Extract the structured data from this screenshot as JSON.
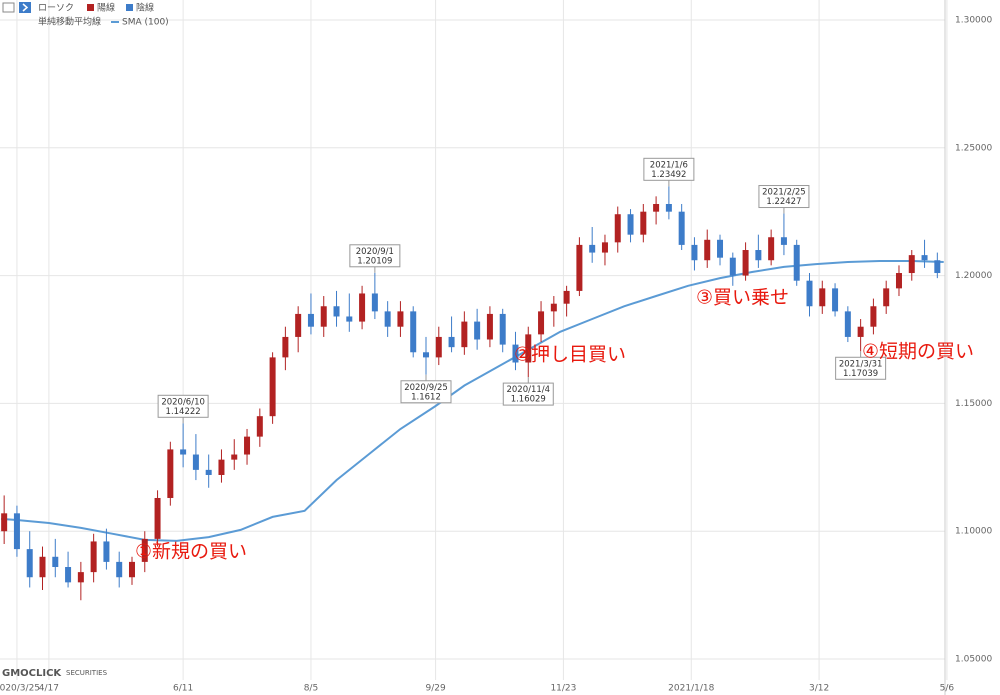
{
  "chart_data": {
    "type": "candlestick",
    "legend": {
      "title": "ローソク",
      "up": "陽線",
      "down": "陰線",
      "ma_title": "単純移動平均線",
      "ma": "SMA (100)"
    },
    "up_color": "#b22222",
    "down_color": "#3d7cc9",
    "x": [
      -4,
      0,
      4,
      8,
      12,
      16,
      20,
      24,
      28,
      32,
      36,
      40,
      44,
      48,
      52,
      56,
      60,
      64,
      68,
      72,
      76,
      80,
      84,
      88,
      92,
      96,
      100,
      104,
      108,
      112,
      116,
      120,
      124,
      128,
      132,
      136,
      140,
      144,
      148,
      152,
      156,
      160,
      164,
      168,
      172,
      176,
      180,
      184,
      188,
      192,
      196,
      200,
      204,
      208,
      212,
      216,
      220,
      224,
      228,
      232,
      236,
      240,
      244,
      248,
      252,
      256,
      260,
      264,
      268,
      272,
      276,
      280,
      284,
      288
    ],
    "ohlc": [
      [
        1.1,
        1.114,
        1.095,
        1.107
      ],
      [
        1.107,
        1.11,
        1.09,
        1.093
      ],
      [
        1.093,
        1.1,
        1.078,
        1.082
      ],
      [
        1.082,
        1.094,
        1.077,
        1.09
      ],
      [
        1.09,
        1.097,
        1.082,
        1.086
      ],
      [
        1.086,
        1.092,
        1.078,
        1.08
      ],
      [
        1.08,
        1.088,
        1.073,
        1.084
      ],
      [
        1.084,
        1.099,
        1.08,
        1.096
      ],
      [
        1.096,
        1.101,
        1.085,
        1.088
      ],
      [
        1.088,
        1.092,
        1.078,
        1.082
      ],
      [
        1.082,
        1.09,
        1.079,
        1.088
      ],
      [
        1.088,
        1.1,
        1.084,
        1.097
      ],
      [
        1.097,
        1.116,
        1.094,
        1.113
      ],
      [
        1.113,
        1.135,
        1.11,
        1.132
      ],
      [
        1.132,
        1.14222,
        1.125,
        1.13
      ],
      [
        1.13,
        1.138,
        1.12,
        1.124
      ],
      [
        1.124,
        1.13,
        1.117,
        1.122
      ],
      [
        1.122,
        1.132,
        1.119,
        1.128
      ],
      [
        1.128,
        1.136,
        1.124,
        1.13
      ],
      [
        1.13,
        1.14,
        1.126,
        1.137
      ],
      [
        1.137,
        1.148,
        1.133,
        1.145
      ],
      [
        1.145,
        1.17,
        1.142,
        1.168
      ],
      [
        1.168,
        1.18,
        1.163,
        1.176
      ],
      [
        1.176,
        1.188,
        1.17,
        1.185
      ],
      [
        1.185,
        1.193,
        1.177,
        1.18
      ],
      [
        1.18,
        1.192,
        1.176,
        1.188
      ],
      [
        1.188,
        1.194,
        1.18,
        1.184
      ],
      [
        1.184,
        1.193,
        1.178,
        1.182
      ],
      [
        1.182,
        1.196,
        1.179,
        1.193
      ],
      [
        1.193,
        1.20109,
        1.183,
        1.186
      ],
      [
        1.186,
        1.19,
        1.176,
        1.18
      ],
      [
        1.18,
        1.19,
        1.176,
        1.186
      ],
      [
        1.186,
        1.188,
        1.168,
        1.17
      ],
      [
        1.17,
        1.176,
        1.1612,
        1.168
      ],
      [
        1.168,
        1.18,
        1.165,
        1.176
      ],
      [
        1.176,
        1.184,
        1.17,
        1.172
      ],
      [
        1.172,
        1.186,
        1.169,
        1.182
      ],
      [
        1.182,
        1.187,
        1.171,
        1.175
      ],
      [
        1.175,
        1.188,
        1.172,
        1.185
      ],
      [
        1.185,
        1.187,
        1.17,
        1.173
      ],
      [
        1.173,
        1.178,
        1.163,
        1.166
      ],
      [
        1.166,
        1.18,
        1.16029,
        1.177
      ],
      [
        1.177,
        1.19,
        1.174,
        1.186
      ],
      [
        1.186,
        1.192,
        1.18,
        1.189
      ],
      [
        1.189,
        1.196,
        1.184,
        1.194
      ],
      [
        1.194,
        1.215,
        1.192,
        1.212
      ],
      [
        1.212,
        1.219,
        1.205,
        1.209
      ],
      [
        1.209,
        1.216,
        1.204,
        1.213
      ],
      [
        1.213,
        1.227,
        1.209,
        1.224
      ],
      [
        1.224,
        1.226,
        1.213,
        1.216
      ],
      [
        1.216,
        1.228,
        1.213,
        1.225
      ],
      [
        1.225,
        1.231,
        1.22,
        1.228
      ],
      [
        1.228,
        1.23492,
        1.222,
        1.225
      ],
      [
        1.225,
        1.228,
        1.21,
        1.212
      ],
      [
        1.212,
        1.215,
        1.202,
        1.206
      ],
      [
        1.206,
        1.218,
        1.203,
        1.214
      ],
      [
        1.214,
        1.216,
        1.204,
        1.207
      ],
      [
        1.207,
        1.209,
        1.196,
        1.2
      ],
      [
        1.2,
        1.213,
        1.198,
        1.21
      ],
      [
        1.21,
        1.216,
        1.203,
        1.206
      ],
      [
        1.206,
        1.218,
        1.204,
        1.215
      ],
      [
        1.215,
        1.22427,
        1.208,
        1.212
      ],
      [
        1.212,
        1.214,
        1.196,
        1.198
      ],
      [
        1.198,
        1.201,
        1.184,
        1.188
      ],
      [
        1.188,
        1.198,
        1.185,
        1.195
      ],
      [
        1.195,
        1.197,
        1.184,
        1.186
      ],
      [
        1.186,
        1.188,
        1.174,
        1.176
      ],
      [
        1.176,
        1.183,
        1.17039,
        1.18
      ],
      [
        1.18,
        1.191,
        1.177,
        1.188
      ],
      [
        1.188,
        1.198,
        1.185,
        1.195
      ],
      [
        1.195,
        1.204,
        1.192,
        1.201
      ],
      [
        1.201,
        1.21,
        1.198,
        1.208
      ],
      [
        1.208,
        1.214,
        1.203,
        1.206
      ],
      [
        1.206,
        1.209,
        1.199,
        1.201
      ]
    ],
    "sma": {
      "name": "SMA (100)",
      "color": "#5b9bd5",
      "x": [
        -5,
        0,
        10,
        20,
        30,
        40,
        50,
        60,
        70,
        80,
        90,
        100,
        110,
        120,
        131,
        140,
        150,
        160,
        170,
        180,
        190,
        200,
        210,
        220,
        230,
        240,
        250,
        260,
        270,
        280,
        290
      ],
      "values": [
        1.1048,
        1.1044,
        1.1032,
        1.1013,
        1.099,
        1.0966,
        1.0962,
        1.0977,
        1.1005,
        1.1056,
        1.108,
        1.12,
        1.13,
        1.14,
        1.149,
        1.157,
        1.164,
        1.171,
        1.178,
        1.183,
        1.188,
        1.192,
        1.196,
        1.199,
        1.2014,
        1.2034,
        1.2045,
        1.2053,
        1.2057,
        1.2057,
        1.2053
      ]
    },
    "xlim": [
      -5.3,
      290.4
    ],
    "ylim": [
      1.0418,
      1.3078
    ],
    "xticks": [
      {
        "value": 0,
        "label": "2020/3/25"
      },
      {
        "value": 10,
        "label": "4/17"
      },
      {
        "value": 52,
        "label": "6/11"
      },
      {
        "value": 92,
        "label": "8/5"
      },
      {
        "value": 131,
        "label": "9/29"
      },
      {
        "value": 171,
        "label": "11/23"
      },
      {
        "value": 211,
        "label": "2021/1/18"
      },
      {
        "value": 251,
        "label": "3/12"
      },
      {
        "value": 291,
        "label": "5/6"
      }
    ],
    "yticks": [
      {
        "value": 1.05,
        "label": "1.05000"
      },
      {
        "value": 1.1,
        "label": "1.10000"
      },
      {
        "value": 1.15,
        "label": "1.15000"
      },
      {
        "value": 1.2,
        "label": "1.20000"
      },
      {
        "value": 1.25,
        "label": "1.25000"
      },
      {
        "value": 1.3,
        "label": "1.30000"
      }
    ],
    "grid": true,
    "annotations": [
      {
        "date": "2020/6/10",
        "value": 1.14222,
        "x": 52,
        "side": "above"
      },
      {
        "date": "2020/9/1",
        "value": 1.20109,
        "x": 112,
        "side": "above"
      },
      {
        "date": "2020/9/25",
        "value": 1.1612,
        "x": 128,
        "side": "below"
      },
      {
        "date": "2020/11/4",
        "value": 1.16029,
        "x": 160,
        "side": "below"
      },
      {
        "date": "2021/1/6",
        "value": 1.23492,
        "x": 204,
        "side": "above"
      },
      {
        "date": "2021/2/25",
        "value": 1.22427,
        "x": 240,
        "side": "above"
      },
      {
        "date": "2021/3/31",
        "value": 1.17039,
        "x": 264,
        "side": "below"
      }
    ],
    "callouts": [
      "①新規の買い",
      "②押し目買い",
      "③買い乗せ",
      "④短期の買い"
    ],
    "logo": "GMOCLICK",
    "logo_sub": "SECURITIES"
  }
}
